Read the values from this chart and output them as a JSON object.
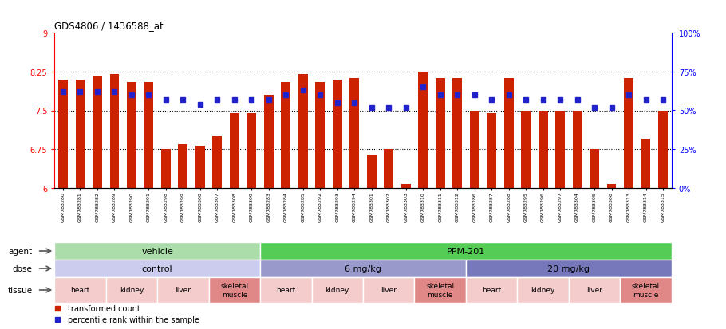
{
  "title": "GDS4806 / 1436588_at",
  "samples": [
    "GSM783280",
    "GSM783281",
    "GSM783282",
    "GSM783289",
    "GSM783290",
    "GSM783291",
    "GSM783298",
    "GSM783299",
    "GSM783300",
    "GSM783307",
    "GSM783308",
    "GSM783309",
    "GSM783283",
    "GSM783284",
    "GSM783285",
    "GSM783292",
    "GSM783293",
    "GSM783294",
    "GSM783301",
    "GSM783302",
    "GSM783303",
    "GSM783310",
    "GSM783311",
    "GSM783312",
    "GSM783286",
    "GSM783287",
    "GSM783288",
    "GSM783295",
    "GSM783296",
    "GSM783297",
    "GSM783304",
    "GSM783305",
    "GSM783306",
    "GSM783313",
    "GSM783314",
    "GSM783315"
  ],
  "bar_values": [
    8.1,
    8.1,
    8.15,
    8.2,
    8.05,
    8.05,
    6.75,
    6.85,
    6.82,
    7.0,
    7.45,
    7.45,
    7.8,
    8.05,
    8.2,
    8.05,
    8.1,
    8.12,
    6.65,
    6.75,
    6.07,
    8.25,
    8.12,
    8.12,
    7.5,
    7.45,
    8.12,
    7.5,
    7.5,
    7.5,
    7.5,
    6.75,
    6.07,
    8.12,
    6.95,
    7.5
  ],
  "dot_values": [
    62,
    62,
    62,
    62,
    60,
    60,
    57,
    57,
    54,
    57,
    57,
    57,
    57,
    60,
    63,
    60,
    55,
    55,
    52,
    52,
    52,
    65,
    60,
    60,
    60,
    57,
    60,
    57,
    57,
    57,
    57,
    52,
    52,
    60,
    57,
    57
  ],
  "ylim_left": [
    6,
    9
  ],
  "ylim_right": [
    0,
    100
  ],
  "yticks_left": [
    6,
    6.75,
    7.5,
    8.25,
    9
  ],
  "yticks_right": [
    0,
    25,
    50,
    75,
    100
  ],
  "hlines": [
    6.75,
    7.5,
    8.25
  ],
  "bar_color": "#cc2200",
  "dot_color": "#2222cc",
  "agent_groups": [
    {
      "label": "vehicle",
      "start": 0,
      "end": 11,
      "color": "#aaddaa"
    },
    {
      "label": "PPM-201",
      "start": 12,
      "end": 35,
      "color": "#55cc55"
    }
  ],
  "dose_groups": [
    {
      "label": "control",
      "start": 0,
      "end": 11,
      "color": "#ccccee"
    },
    {
      "label": "6 mg/kg",
      "start": 12,
      "end": 23,
      "color": "#9999cc"
    },
    {
      "label": "20 mg/kg",
      "start": 24,
      "end": 35,
      "color": "#7777bb"
    }
  ],
  "tissue_groups": [
    {
      "label": "heart",
      "start": 0,
      "end": 2,
      "color": "#f4cccc"
    },
    {
      "label": "kidney",
      "start": 3,
      "end": 5,
      "color": "#f4cccc"
    },
    {
      "label": "liver",
      "start": 6,
      "end": 8,
      "color": "#f4cccc"
    },
    {
      "label": "skeletal\nmuscle",
      "start": 9,
      "end": 11,
      "color": "#e08888"
    },
    {
      "label": "heart",
      "start": 12,
      "end": 14,
      "color": "#f4cccc"
    },
    {
      "label": "kidney",
      "start": 15,
      "end": 17,
      "color": "#f4cccc"
    },
    {
      "label": "liver",
      "start": 18,
      "end": 20,
      "color": "#f4cccc"
    },
    {
      "label": "skeletal\nmuscle",
      "start": 21,
      "end": 23,
      "color": "#e08888"
    },
    {
      "label": "heart",
      "start": 24,
      "end": 26,
      "color": "#f4cccc"
    },
    {
      "label": "kidney",
      "start": 27,
      "end": 29,
      "color": "#f4cccc"
    },
    {
      "label": "liver",
      "start": 30,
      "end": 32,
      "color": "#f4cccc"
    },
    {
      "label": "skeletal\nmuscle",
      "start": 33,
      "end": 35,
      "color": "#e08888"
    }
  ],
  "label_agent": "agent",
  "label_dose": "dose",
  "label_tissue": "tissue",
  "legend_bar": "transformed count",
  "legend_dot": "percentile rank within the sample"
}
